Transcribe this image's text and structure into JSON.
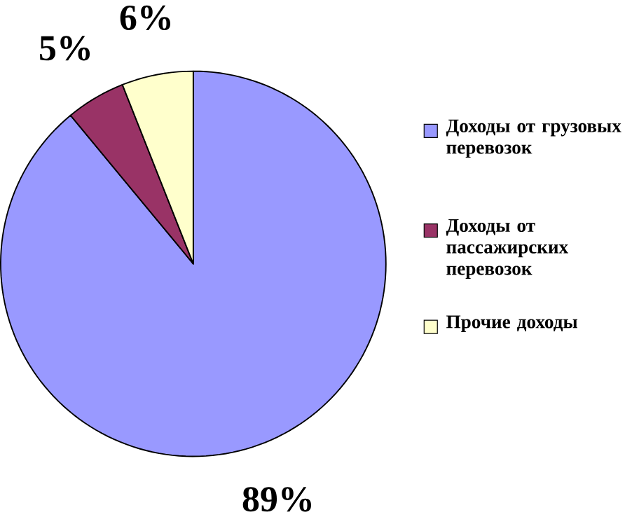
{
  "chart_data": {
    "type": "pie",
    "categories": [
      "Доходы от грузовых перевозок",
      "Доходы от пассажирских перевозок",
      "Прочие доходы"
    ],
    "values": [
      89,
      5,
      6
    ],
    "colors": [
      "#9999ff",
      "#993366",
      "#ffffcc"
    ],
    "value_labels": [
      "89%",
      "5%",
      "6%"
    ],
    "legend": "right"
  }
}
